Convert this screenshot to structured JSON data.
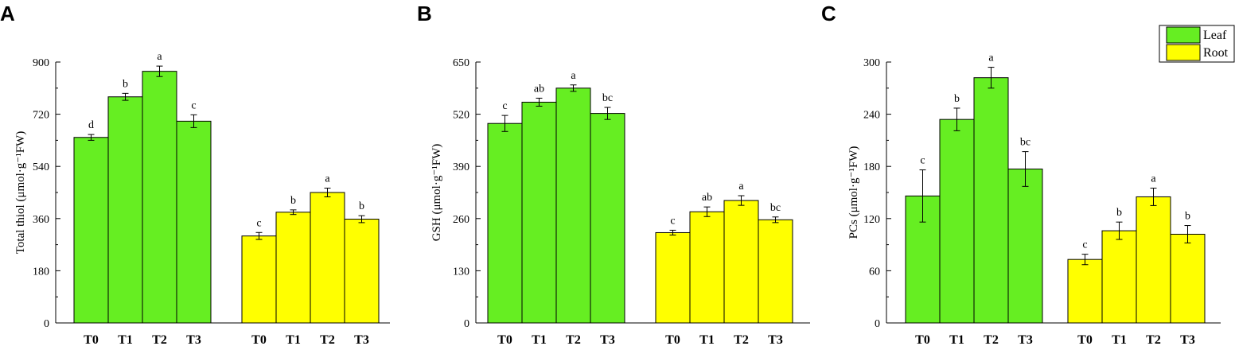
{
  "colors": {
    "leaf": "#66ee22",
    "root": "#ffff00",
    "edge": "#000000"
  },
  "legend": {
    "items": [
      {
        "name": "Leaf",
        "color": "#66ee22"
      },
      {
        "name": "Root",
        "color": "#ffff00"
      }
    ],
    "placement": "top-right"
  },
  "chart_data": [
    {
      "type": "bar",
      "panel": "A",
      "ylabel": "Total thiol (μmol·g⁻¹FW)",
      "ylim": [
        0,
        900
      ],
      "yticks": [
        0,
        180,
        360,
        540,
        720,
        900
      ],
      "categories": [
        "T0",
        "T1",
        "T2",
        "T3"
      ],
      "series": [
        {
          "name": "Leaf",
          "values": [
            640,
            780,
            868,
            696
          ],
          "errors": [
            10,
            12,
            18,
            22
          ],
          "labels": [
            "d",
            "b",
            "a",
            "c"
          ]
        },
        {
          "name": "Root",
          "values": [
            300,
            382,
            450,
            358
          ],
          "errors": [
            12,
            8,
            15,
            12
          ],
          "labels": [
            "c",
            "b",
            "a",
            "b"
          ]
        }
      ]
    },
    {
      "type": "bar",
      "panel": "B",
      "ylabel": "GSH (μmol·g⁻¹FW)",
      "ylim": [
        0,
        650
      ],
      "yticks": [
        0,
        130,
        260,
        390,
        520,
        650
      ],
      "categories": [
        "T0",
        "T1",
        "T2",
        "T3"
      ],
      "series": [
        {
          "name": "Leaf",
          "values": [
            497,
            550,
            585,
            522
          ],
          "errors": [
            20,
            10,
            8,
            15
          ],
          "labels": [
            "c",
            "ab",
            "a",
            "bc"
          ]
        },
        {
          "name": "Root",
          "values": [
            225,
            277,
            305,
            257
          ],
          "errors": [
            6,
            12,
            12,
            7
          ],
          "labels": [
            "c",
            "ab",
            "a",
            "bc"
          ]
        }
      ]
    },
    {
      "type": "bar",
      "panel": "C",
      "ylabel": "PCs (μmol·g⁻¹FW)",
      "ylim": [
        0,
        300
      ],
      "yticks": [
        0,
        60,
        120,
        180,
        240,
        300
      ],
      "categories": [
        "T0",
        "T1",
        "T2",
        "T3"
      ],
      "series": [
        {
          "name": "Leaf",
          "values": [
            146,
            234,
            282,
            177
          ],
          "errors": [
            30,
            13,
            12,
            20
          ],
          "labels": [
            "c",
            "b",
            "a",
            "bc"
          ]
        },
        {
          "name": "Root",
          "values": [
            73,
            106,
            145,
            102
          ],
          "errors": [
            6,
            10,
            10,
            10
          ],
          "labels": [
            "c",
            "b",
            "a",
            "b"
          ]
        }
      ]
    }
  ]
}
